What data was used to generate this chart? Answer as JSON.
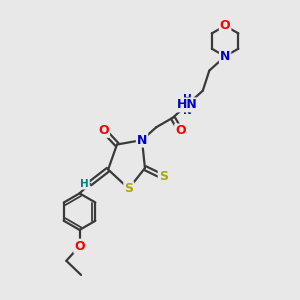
{
  "bg_color": "#e8e8e8",
  "bond_color": "#3a3a3a",
  "bond_width": 1.6,
  "atom_colors": {
    "O": "#ff0000",
    "N": "#0000cc",
    "S": "#aaaa00",
    "H": "#008080",
    "C": "#3a3a3a"
  },
  "font_size": 9,
  "font_size_s": 7.5
}
